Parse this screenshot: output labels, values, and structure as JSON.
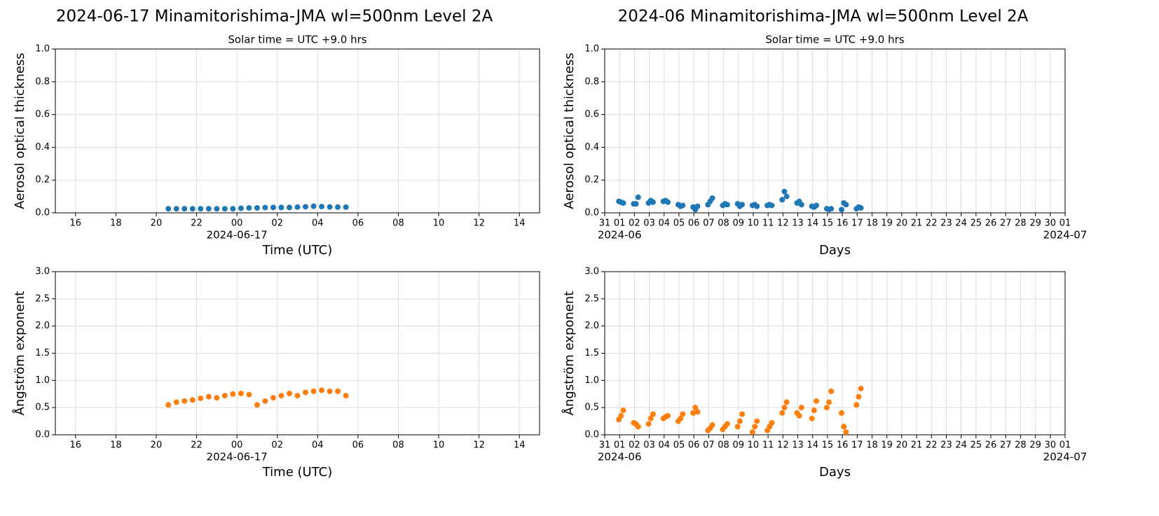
{
  "chart_data": [
    {
      "type": "scatter",
      "title": "2024-06-17  Minamitorishima-JMA  wl=500nm  Level 2A",
      "subtitle": "Solar time = UTC +9.0 hrs",
      "xlabel": "Time (UTC)",
      "ylabel": "Aerosol optical thickness",
      "color": "#1f77b4",
      "grid": true,
      "x": [
        -3.4,
        -3.0,
        -2.6,
        -2.2,
        -1.8,
        -1.4,
        -1.0,
        -0.6,
        -0.2,
        0.2,
        0.6,
        1.0,
        1.4,
        1.8,
        2.2,
        2.6,
        3.0,
        3.4,
        3.8,
        4.2,
        4.6,
        5.0,
        5.4
      ],
      "values": [
        0.025,
        0.025,
        0.025,
        0.025,
        0.025,
        0.025,
        0.025,
        0.025,
        0.025,
        0.028,
        0.03,
        0.03,
        0.032,
        0.033,
        0.033,
        0.033,
        0.035,
        0.037,
        0.04,
        0.038,
        0.036,
        0.035,
        0.035
      ],
      "xlim": [
        -9,
        15
      ],
      "xticks": [
        {
          "value": -8,
          "label": "16"
        },
        {
          "value": -6,
          "label": "18"
        },
        {
          "value": -4,
          "label": "20"
        },
        {
          "value": -2,
          "label": "22"
        },
        {
          "value": 0,
          "label": "00"
        },
        {
          "value": 2,
          "label": "02"
        },
        {
          "value": 4,
          "label": "04"
        },
        {
          "value": 6,
          "label": "06"
        },
        {
          "value": 8,
          "label": "08"
        },
        10,
        12,
        14
      ],
      "xtick_sublabels": [
        {
          "value": 0,
          "label": "2024-06-17"
        }
      ],
      "ylim": [
        0,
        1
      ],
      "yticks": [
        {
          "value": 0,
          "label": "0.0"
        },
        0.2,
        0.4,
        0.6,
        0.8,
        {
          "value": 1,
          "label": "1.0"
        }
      ]
    },
    {
      "type": "scatter",
      "title": "2024-06  Minamitorishima-JMA  wl=500nm  Level 2A",
      "subtitle": "Solar time = UTC +9.0 hrs",
      "xlabel": "Days",
      "ylabel": "Aerosol optical thickness",
      "color": "#1f77b4",
      "grid": true,
      "x": [
        0.95,
        1.1,
        1.25,
        1.95,
        2.1,
        2.25,
        2.95,
        3.1,
        3.25,
        3.95,
        4.1,
        4.25,
        4.95,
        5.1,
        5.25,
        5.95,
        6.1,
        6.25,
        6.95,
        7.1,
        7.25,
        7.95,
        8.1,
        8.25,
        8.95,
        9.1,
        9.25,
        9.95,
        10.1,
        10.25,
        10.95,
        11.1,
        11.25,
        11.95,
        12.1,
        12.25,
        12.95,
        13.1,
        13.25,
        13.95,
        14.1,
        14.25,
        14.95,
        15.1,
        15.25,
        15.95,
        16.1,
        16.25,
        16.95,
        17.1,
        17.25
      ],
      "values": [
        0.07,
        0.065,
        0.06,
        0.055,
        0.055,
        0.095,
        0.06,
        0.075,
        0.065,
        0.07,
        0.075,
        0.065,
        0.05,
        0.04,
        0.045,
        0.035,
        0.02,
        0.04,
        0.05,
        0.07,
        0.09,
        0.045,
        0.055,
        0.05,
        0.055,
        0.04,
        0.05,
        0.045,
        0.05,
        0.04,
        0.045,
        0.05,
        0.045,
        0.08,
        0.13,
        0.1,
        0.06,
        0.07,
        0.05,
        0.04,
        0.035,
        0.045,
        0.025,
        0.02,
        0.025,
        0.02,
        0.06,
        0.05,
        0.025,
        0.035,
        0.03
      ],
      "xlim": [
        0,
        31
      ],
      "xticks": [
        {
          "value": 0,
          "label": "31"
        },
        {
          "value": 1,
          "label": "01"
        },
        {
          "value": 2,
          "label": "02"
        },
        {
          "value": 3,
          "label": "03"
        },
        {
          "value": 4,
          "label": "04"
        },
        {
          "value": 5,
          "label": "05"
        },
        {
          "value": 6,
          "label": "06"
        },
        {
          "value": 7,
          "label": "07"
        },
        {
          "value": 8,
          "label": "08"
        },
        {
          "value": 9,
          "label": "09"
        },
        10,
        11,
        12,
        13,
        14,
        15,
        16,
        17,
        18,
        19,
        20,
        21,
        22,
        23,
        24,
        25,
        26,
        27,
        28,
        29,
        30,
        {
          "value": 31,
          "label": "01"
        }
      ],
      "xtick_sublabels": [
        {
          "value": 1,
          "label": "2024-06"
        },
        {
          "value": 31,
          "label": "2024-07"
        }
      ],
      "ylim": [
        0,
        1
      ],
      "yticks": [
        {
          "value": 0,
          "label": "0.0"
        },
        0.2,
        0.4,
        0.6,
        0.8,
        {
          "value": 1,
          "label": "1.0"
        }
      ]
    },
    {
      "type": "scatter",
      "xlabel": "Time (UTC)",
      "ylabel": "Ångström exponent",
      "color": "#ff7f0e",
      "grid": true,
      "x": [
        -3.4,
        -3.0,
        -2.6,
        -2.2,
        -1.8,
        -1.4,
        -1.0,
        -0.6,
        -0.2,
        0.2,
        0.6,
        1.0,
        1.4,
        1.8,
        2.2,
        2.6,
        3.0,
        3.4,
        3.8,
        4.2,
        4.6,
        5.0,
        5.4
      ],
      "values": [
        0.55,
        0.6,
        0.62,
        0.64,
        0.67,
        0.7,
        0.68,
        0.72,
        0.75,
        0.76,
        0.74,
        0.55,
        0.62,
        0.68,
        0.72,
        0.76,
        0.72,
        0.78,
        0.8,
        0.82,
        0.8,
        0.8,
        0.72
      ],
      "xlim": [
        -9,
        15
      ],
      "xticks": [
        {
          "value": -8,
          "label": "16"
        },
        {
          "value": -6,
          "label": "18"
        },
        {
          "value": -4,
          "label": "20"
        },
        {
          "value": -2,
          "label": "22"
        },
        {
          "value": 0,
          "label": "00"
        },
        {
          "value": 2,
          "label": "02"
        },
        {
          "value": 4,
          "label": "04"
        },
        {
          "value": 6,
          "label": "06"
        },
        {
          "value": 8,
          "label": "08"
        },
        10,
        12,
        14
      ],
      "xtick_sublabels": [
        {
          "value": 0,
          "label": "2024-06-17"
        }
      ],
      "ylim": [
        0,
        3
      ],
      "yticks": [
        {
          "value": 0,
          "label": "0.0"
        },
        0.5,
        {
          "value": 1,
          "label": "1.0"
        },
        1.5,
        {
          "value": 2,
          "label": "2.0"
        },
        2.5,
        {
          "value": 3,
          "label": "3.0"
        }
      ]
    },
    {
      "type": "scatter",
      "xlabel": "Days",
      "ylabel": "Ångström exponent",
      "color": "#ff7f0e",
      "grid": true,
      "x": [
        0.95,
        1.1,
        1.25,
        1.95,
        2.1,
        2.25,
        2.95,
        3.1,
        3.25,
        3.95,
        4.1,
        4.25,
        4.95,
        5.1,
        5.25,
        5.95,
        6.1,
        6.25,
        6.95,
        7.1,
        7.25,
        7.95,
        8.1,
        8.25,
        8.95,
        9.1,
        9.25,
        9.95,
        10.1,
        10.25,
        10.95,
        11.1,
        11.25,
        11.95,
        12.1,
        12.25,
        12.95,
        13.1,
        13.25,
        13.95,
        14.1,
        14.25,
        14.95,
        15.1,
        15.25,
        15.95,
        16.1,
        16.25,
        16.95,
        17.1,
        17.25
      ],
      "values": [
        0.28,
        0.35,
        0.45,
        0.22,
        0.2,
        0.15,
        0.2,
        0.3,
        0.38,
        0.3,
        0.33,
        0.35,
        0.25,
        0.3,
        0.38,
        0.4,
        0.5,
        0.42,
        0.08,
        0.12,
        0.18,
        0.1,
        0.15,
        0.2,
        0.15,
        0.25,
        0.38,
        0.05,
        0.15,
        0.25,
        0.08,
        0.15,
        0.22,
        0.4,
        0.5,
        0.6,
        0.4,
        0.35,
        0.5,
        0.3,
        0.45,
        0.62,
        0.5,
        0.6,
        0.8,
        0.4,
        0.15,
        0.05,
        0.55,
        0.7,
        0.85
      ],
      "xlim": [
        0,
        31
      ],
      "xticks": [
        {
          "value": 0,
          "label": "31"
        },
        {
          "value": 1,
          "label": "01"
        },
        {
          "value": 2,
          "label": "02"
        },
        {
          "value": 3,
          "label": "03"
        },
        {
          "value": 4,
          "label": "04"
        },
        {
          "value": 5,
          "label": "05"
        },
        {
          "value": 6,
          "label": "06"
        },
        {
          "value": 7,
          "label": "07"
        },
        {
          "value": 8,
          "label": "08"
        },
        {
          "value": 9,
          "label": "09"
        },
        10,
        11,
        12,
        13,
        14,
        15,
        16,
        17,
        18,
        19,
        20,
        21,
        22,
        23,
        24,
        25,
        26,
        27,
        28,
        29,
        30,
        {
          "value": 31,
          "label": "01"
        }
      ],
      "xtick_sublabels": [
        {
          "value": 1,
          "label": "2024-06"
        },
        {
          "value": 31,
          "label": "2024-07"
        }
      ],
      "ylim": [
        0,
        3
      ],
      "yticks": [
        {
          "value": 0,
          "label": "0.0"
        },
        0.5,
        {
          "value": 1,
          "label": "1.0"
        },
        1.5,
        {
          "value": 2,
          "label": "2.0"
        },
        2.5,
        {
          "value": 3,
          "label": "3.0"
        }
      ]
    }
  ]
}
